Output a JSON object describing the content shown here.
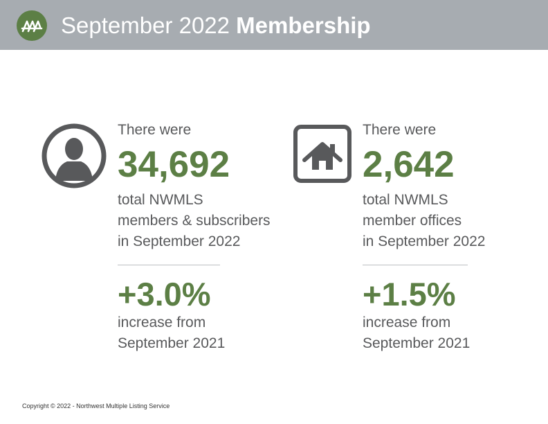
{
  "header": {
    "title_light": "September 2022 ",
    "title_bold": "Membership",
    "bg_color": "#a7acb1",
    "logo_icon": "nwmls-logo-icon"
  },
  "accent_color": "#5c7f45",
  "stats": [
    {
      "icon": "person-icon",
      "lead": "There were",
      "value": "34,692",
      "desc_lines": [
        "total NWMLS",
        "members & subscribers",
        "in September 2022"
      ],
      "change": "+3.0%",
      "change_lines": [
        "increase from",
        "September 2021"
      ]
    },
    {
      "icon": "house-icon",
      "lead": "There were",
      "value": "2,642",
      "desc_lines": [
        "total NWMLS",
        "member offices",
        "in September 2022"
      ],
      "change": "+1.5%",
      "change_lines": [
        "increase from",
        "September 2021"
      ]
    }
  ],
  "footer": {
    "copyright": "Copyright © 2022 - Northwest Multiple Listing Service"
  }
}
